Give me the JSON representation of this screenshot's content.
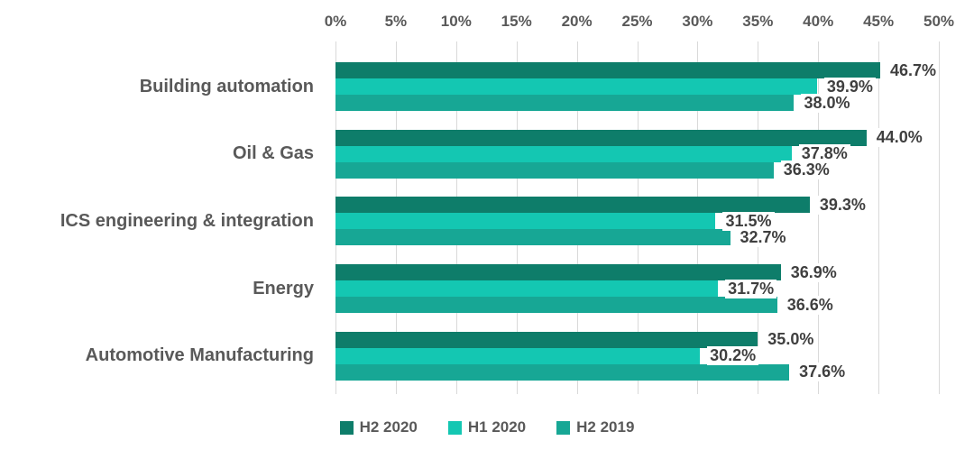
{
  "chart_data": {
    "type": "bar",
    "orientation": "horizontal",
    "categories": [
      "Building automation",
      "Oil & Gas",
      "ICS engineering & integration",
      "Energy",
      "Automotive Manufacturing"
    ],
    "series": [
      {
        "name": "H2 2020",
        "color": "#0e7d6a",
        "values": [
          46.7,
          44.0,
          39.3,
          36.9,
          35.0
        ]
      },
      {
        "name": "H1 2020",
        "color": "#14c7b2",
        "values": [
          39.9,
          37.8,
          31.5,
          31.7,
          30.2
        ]
      },
      {
        "name": "H2 2019",
        "color": "#17a795",
        "values": [
          38.0,
          36.3,
          32.7,
          36.6,
          37.6
        ]
      }
    ],
    "x_axis": {
      "position": "top",
      "min": 0,
      "max": 50,
      "step": 5,
      "tick_labels": [
        "0%",
        "5%",
        "10%",
        "15%",
        "20%",
        "25%",
        "30%",
        "35%",
        "40%",
        "45%",
        "50%"
      ]
    },
    "value_labels": {
      "visible": true,
      "format": "one_decimal_percent",
      "values_text": [
        [
          "46.7%",
          "39.9%",
          "38.0%"
        ],
        [
          "44.0%",
          "37.8%",
          "36.3%"
        ],
        [
          "39.3%",
          "31.5%",
          "32.7%"
        ],
        [
          "36.9%",
          "31.7%",
          "36.6%"
        ],
        [
          "35.0%",
          "30.2%",
          "37.6%"
        ]
      ]
    },
    "grid": true,
    "legend_position": "bottom",
    "legend_entries": [
      "H2 2020",
      "H1 2020",
      "H2 2019"
    ]
  },
  "colors": {
    "background": "#ffffff",
    "gridline": "#d9d9d9",
    "axis_text": "#595959",
    "category_text": "#595959",
    "value_text": "#3f3f3f"
  }
}
